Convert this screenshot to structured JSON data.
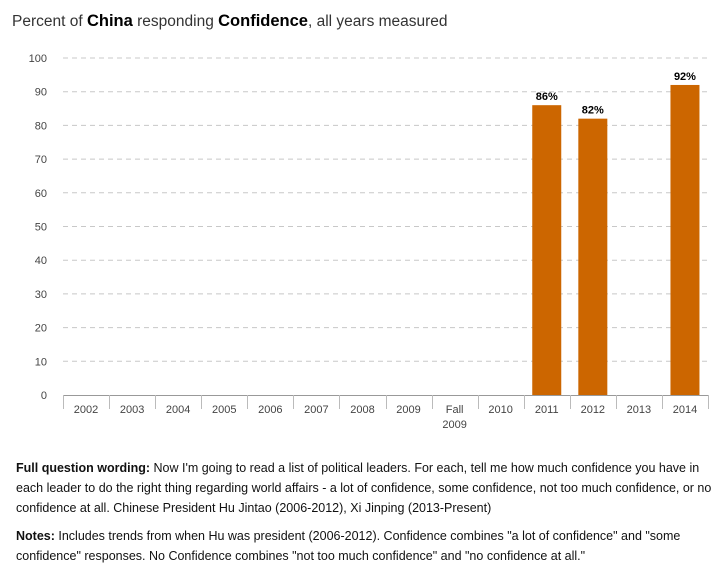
{
  "header": {
    "prefix": "Percent of",
    "country": "China",
    "mid": "responding",
    "response": "Confidence",
    "suffix": ", all years measured"
  },
  "chart_data": {
    "type": "bar",
    "categories": [
      "2002",
      "2003",
      "2004",
      "2005",
      "2006",
      "2007",
      "2008",
      "2009",
      "Fall 2009",
      "2010",
      "2011",
      "2012",
      "2013",
      "2014"
    ],
    "values": [
      null,
      null,
      null,
      null,
      null,
      null,
      null,
      null,
      null,
      null,
      86,
      82,
      null,
      92
    ],
    "data_labels": [
      "",
      "",
      "",
      "",
      "",
      "",
      "",
      "",
      "",
      "",
      "86%",
      "82%",
      "",
      "92%"
    ],
    "ylim": [
      0,
      100
    ],
    "yticks": [
      0,
      10,
      20,
      30,
      40,
      50,
      60,
      70,
      80,
      90,
      100
    ],
    "grid": true,
    "bar_color": "#CC6600",
    "title": "",
    "xlabel": "",
    "ylabel": ""
  },
  "footer": {
    "wording_label": "Full question wording:",
    "wording_text": " Now I'm going to read a list of political leaders. For each, tell me how much confidence you have in each leader to do the right thing regarding world affairs - a lot of confidence, some confidence, not too much confidence, or no confidence at all. Chinese President Hu Jintao (2006-2012), Xi Jinping (2013-Present)",
    "notes_label": "Notes:",
    "notes_text": " Includes trends from when Hu was president (2006-2012). Confidence combines \"a lot of confidence\" and \"some confidence\" responses. No Confidence combines \"not too much confidence\" and \"no confidence at all.\""
  }
}
